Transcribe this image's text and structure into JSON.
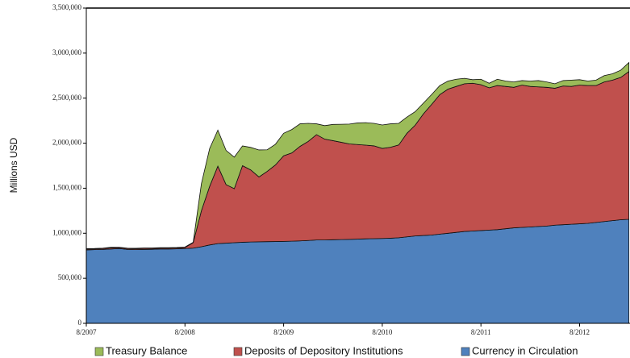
{
  "chart_data": {
    "type": "stacked-area",
    "y_label": "Millions USD",
    "x": [
      "8/2007",
      "9/2007",
      "10/2007",
      "11/2007",
      "12/2007",
      "1/2008",
      "2/2008",
      "3/2008",
      "4/2008",
      "5/2008",
      "6/2008",
      "7/2008",
      "8/2008",
      "9/2008",
      "10/2008",
      "11/2008",
      "12/2008",
      "1/2009",
      "2/2009",
      "3/2009",
      "4/2009",
      "5/2009",
      "6/2009",
      "7/2009",
      "8/2009",
      "9/2009",
      "10/2009",
      "11/2009",
      "12/2009",
      "1/2010",
      "2/2010",
      "3/2010",
      "4/2010",
      "5/2010",
      "6/2010",
      "7/2010",
      "8/2010",
      "9/2010",
      "10/2010",
      "11/2010",
      "12/2010",
      "1/2011",
      "2/2011",
      "3/2011",
      "4/2011",
      "5/2011",
      "6/2011",
      "7/2011",
      "8/2011",
      "9/2011",
      "10/2011",
      "11/2011",
      "12/2011",
      "1/2012",
      "2/2012",
      "3/2012",
      "4/2012",
      "5/2012",
      "6/2012",
      "7/2012",
      "8/2012",
      "9/2012",
      "10/2012",
      "11/2012",
      "12/2012",
      "1/2013",
      "2/2013"
    ],
    "series": [
      {
        "name": "Currency in Circulation",
        "color": "#4f81bd",
        "values": [
          815000,
          818000,
          820000,
          825000,
          830000,
          820000,
          818000,
          820000,
          822000,
          825000,
          825000,
          827000,
          830000,
          835000,
          850000,
          870000,
          885000,
          890000,
          895000,
          900000,
          903000,
          905000,
          907000,
          908000,
          910000,
          912000,
          915000,
          920000,
          925000,
          925000,
          928000,
          930000,
          932000,
          935000,
          938000,
          940000,
          942000,
          945000,
          950000,
          960000,
          970000,
          975000,
          980000,
          990000,
          1000000,
          1010000,
          1020000,
          1025000,
          1030000,
          1035000,
          1040000,
          1050000,
          1060000,
          1065000,
          1070000,
          1075000,
          1080000,
          1090000,
          1095000,
          1100000,
          1105000,
          1110000,
          1120000,
          1130000,
          1140000,
          1150000,
          1155000
        ]
      },
      {
        "name": "Deposits of Depository Institutions",
        "color": "#c0504d",
        "values": [
          10000,
          8000,
          10000,
          12000,
          10000,
          10000,
          10000,
          12000,
          10000,
          10000,
          10000,
          10000,
          12000,
          60000,
          400000,
          650000,
          860000,
          650000,
          600000,
          850000,
          800000,
          720000,
          780000,
          850000,
          950000,
          980000,
          1050000,
          1100000,
          1170000,
          1120000,
          1100000,
          1080000,
          1060000,
          1050000,
          1040000,
          1030000,
          1000000,
          1010000,
          1030000,
          1150000,
          1230000,
          1350000,
          1450000,
          1550000,
          1600000,
          1620000,
          1640000,
          1640000,
          1620000,
          1580000,
          1600000,
          1580000,
          1560000,
          1580000,
          1560000,
          1550000,
          1540000,
          1520000,
          1540000,
          1530000,
          1540000,
          1530000,
          1520000,
          1550000,
          1560000,
          1580000,
          1640000
        ]
      },
      {
        "name": "Treasury Balance",
        "color": "#9bbb59",
        "values": [
          5000,
          5000,
          5000,
          8000,
          5000,
          5000,
          5000,
          5000,
          5000,
          5000,
          5000,
          5000,
          5000,
          5000,
          300000,
          420000,
          400000,
          380000,
          350000,
          220000,
          250000,
          300000,
          240000,
          230000,
          250000,
          260000,
          250000,
          200000,
          120000,
          150000,
          180000,
          200000,
          220000,
          240000,
          250000,
          250000,
          260000,
          260000,
          240000,
          180000,
          150000,
          120000,
          110000,
          100000,
          90000,
          80000,
          60000,
          40000,
          60000,
          50000,
          70000,
          60000,
          60000,
          50000,
          60000,
          70000,
          60000,
          50000,
          60000,
          70000,
          60000,
          50000,
          60000,
          70000,
          70000,
          80000,
          100000
        ]
      }
    ],
    "xticks": [
      "8/2007",
      "8/2008",
      "8/2009",
      "8/2010",
      "8/2011",
      "8/2012"
    ],
    "ylim": [
      0,
      3500000
    ],
    "yticks": [
      {
        "value": 0,
        "label": "0"
      },
      {
        "value": 500000,
        "label": "500,000"
      },
      {
        "value": 1000000,
        "label": "1,000,000"
      },
      {
        "value": 1500000,
        "label": "1,500,000"
      },
      {
        "value": 2000000,
        "label": "2,000,000"
      },
      {
        "value": 2500000,
        "label": "2,500,000"
      },
      {
        "value": 3000000,
        "label": "3,000,000"
      },
      {
        "value": 3500000,
        "label": "3,500,000"
      }
    ],
    "legend_order": [
      2,
      1,
      0
    ]
  }
}
